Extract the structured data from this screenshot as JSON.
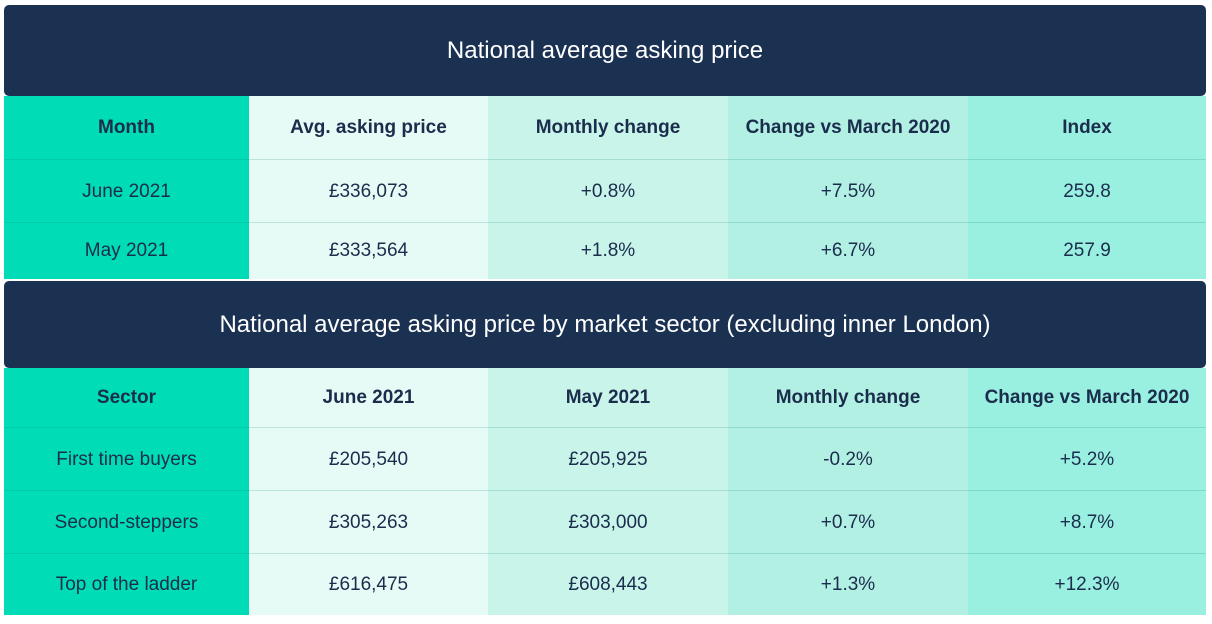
{
  "table1": {
    "title": "National average asking price",
    "headers": [
      "Month",
      "Avg. asking price",
      "Monthly change",
      "Change vs March 2020",
      "Index"
    ],
    "rows": [
      [
        "June 2021",
        "£336,073",
        "+0.8%",
        "+7.5%",
        "259.8"
      ],
      [
        "May 2021",
        "£333,564",
        "+1.8%",
        "+6.7%",
        "257.9"
      ]
    ]
  },
  "table2": {
    "title": "National average asking price by market sector (excluding inner London)",
    "headers": [
      "Sector",
      "June 2021",
      "May 2021",
      "Monthly change",
      "Change vs March 2020"
    ],
    "rows": [
      [
        "First time buyers",
        "£205,540",
        "£205,925",
        "-0.2%",
        "+5.2%"
      ],
      [
        "Second-steppers",
        "£305,263",
        "£303,000",
        "+0.7%",
        "+8.7%"
      ],
      [
        "Top of the ladder",
        "£616,475",
        "£608,443",
        "+1.3%",
        "+12.3%"
      ]
    ]
  },
  "colors": {
    "header_bg": "#1a3152",
    "first_col": "#00dcb6",
    "col2": "#e7fbf6",
    "col3": "#c9f4ea",
    "col4": "#b2f0e3",
    "col5": "#99f0e0",
    "text": "#1b2d4d"
  }
}
